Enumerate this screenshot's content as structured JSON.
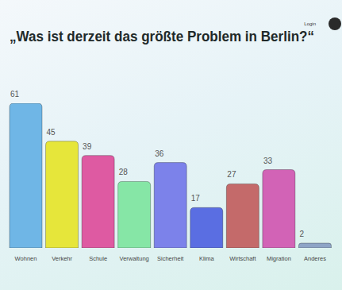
{
  "chart_data": {
    "type": "bar",
    "title": "„Was ist derzeit das größte Problem in Berlin?“",
    "annotations": [
      "Login"
    ],
    "categories": [
      "Wohnen",
      "Verkehr",
      "Schule",
      "Verwaltung",
      "Sicherheit",
      "Klima",
      "Wirtschaft",
      "Migration",
      "Anderes"
    ],
    "values": [
      61,
      45,
      39,
      28,
      36,
      17,
      27,
      33,
      2
    ],
    "colors": [
      "#6fb6e6",
      "#e6e63a",
      "#de5aa2",
      "#86e6a6",
      "#7c82ea",
      "#5a6ee2",
      "#c46a6a",
      "#d263b6",
      "#8ea4c6"
    ],
    "ylim": [
      0,
      61
    ],
    "data_labels": true,
    "grid": false,
    "tick_labels": "x"
  }
}
